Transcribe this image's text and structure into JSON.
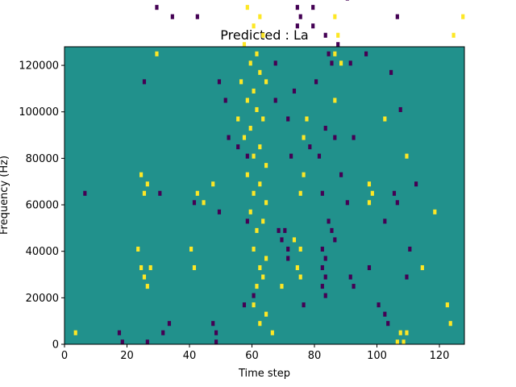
{
  "chart_data": {
    "type": "heatmap",
    "title": "Predicted : La",
    "xlabel": "Time step",
    "ylabel": "Frequency (Hz)",
    "xlim": [
      0,
      128
    ],
    "ylim": [
      0,
      128000
    ],
    "x_ticks": [
      "0",
      "20",
      "40",
      "60",
      "80",
      "100",
      "120"
    ],
    "y_ticks": [
      "0",
      "20000",
      "40000",
      "60000",
      "80000",
      "100000",
      "120000"
    ],
    "legend": "none",
    "grid": false,
    "colors": {
      "background": "#21918c",
      "low": "#440154",
      "high": "#fde725"
    },
    "grid_size": {
      "time_steps": 128,
      "frequency_bins": 64,
      "bin_hz": 2000
    },
    "low_cells": [
      [
        2,
        126
      ],
      [
        31,
        124
      ],
      [
        50,
        124
      ],
      [
        62,
        126
      ],
      [
        88,
        124
      ],
      [
        87,
        110
      ],
      [
        94,
        112
      ],
      [
        110,
        124
      ],
      [
        59,
        118
      ],
      [
        26,
        106
      ],
      [
        35,
        108
      ],
      [
        78,
        108
      ],
      [
        76,
        104
      ],
      [
        115,
        108
      ],
      [
        56,
        94
      ],
      [
        38,
        90
      ],
      [
        46,
        88
      ],
      [
        66,
        92
      ],
      [
        68,
        90
      ],
      [
        66,
        88
      ],
      [
        79,
        86
      ],
      [
        83,
        84
      ],
      [
        100,
        84
      ],
      [
        106,
        88
      ],
      [
        34,
        70
      ],
      [
        42,
        70
      ],
      [
        73,
        76
      ],
      [
        74,
        72
      ],
      [
        79,
        72
      ],
      [
        90,
        74
      ],
      [
        106,
        70
      ],
      [
        29,
        72
      ],
      [
        75,
        70
      ],
      [
        74,
        68
      ],
      [
        79,
        68
      ],
      [
        83,
        66
      ],
      [
        87,
        64
      ],
      [
        96,
        62
      ],
      [
        25,
        56
      ],
      [
        49,
        56
      ],
      [
        51,
        52
      ],
      [
        67,
        52
      ],
      [
        80,
        56
      ],
      [
        84,
        62
      ],
      [
        85,
        60
      ],
      [
        91,
        60
      ],
      [
        104,
        58
      ],
      [
        107,
        50
      ],
      [
        83,
        46
      ],
      [
        86,
        44
      ],
      [
        52,
        44
      ],
      [
        55,
        42
      ],
      [
        58,
        40
      ],
      [
        78,
        42
      ],
      [
        81,
        40
      ],
      [
        88,
        36
      ],
      [
        90,
        30
      ],
      [
        105,
        32
      ],
      [
        106,
        30
      ],
      [
        112,
        34
      ],
      [
        6,
        32
      ],
      [
        30,
        32
      ],
      [
        41,
        30
      ],
      [
        49,
        28
      ],
      [
        58,
        26
      ],
      [
        68,
        24
      ],
      [
        69,
        22
      ],
      [
        70,
        24
      ],
      [
        71,
        20
      ],
      [
        71,
        18
      ],
      [
        84,
        26
      ],
      [
        85,
        24
      ],
      [
        86,
        22
      ],
      [
        82,
        20
      ],
      [
        83,
        18
      ],
      [
        82,
        16
      ],
      [
        83,
        14
      ],
      [
        82,
        12
      ],
      [
        83,
        10
      ],
      [
        76,
        8
      ],
      [
        100,
        8
      ],
      [
        102,
        6
      ],
      [
        103,
        4
      ],
      [
        17,
        2
      ],
      [
        18,
        0
      ],
      [
        26,
        0
      ],
      [
        31,
        2
      ],
      [
        33,
        4
      ],
      [
        47,
        4
      ],
      [
        48,
        2
      ],
      [
        48,
        0
      ],
      [
        57,
        8
      ],
      [
        60,
        10
      ],
      [
        91,
        14
      ],
      [
        92,
        12
      ],
      [
        97,
        16
      ],
      [
        102,
        26
      ],
      [
        109,
        14
      ],
      [
        72,
        40
      ],
      [
        67,
        60
      ],
      [
        71,
        48
      ],
      [
        73,
        54
      ],
      [
        82,
        32
      ],
      [
        92,
        44
      ],
      [
        110,
        20
      ]
    ],
    "high_cells": [
      [
        7,
        126
      ],
      [
        45,
        126
      ],
      [
        61,
        126
      ],
      [
        71,
        124
      ],
      [
        74,
        124
      ],
      [
        86,
        124
      ],
      [
        105,
        124
      ],
      [
        127,
        126
      ],
      [
        53,
        108
      ],
      [
        68,
        112
      ],
      [
        71,
        108
      ],
      [
        83,
        106
      ],
      [
        89,
        104
      ],
      [
        93,
        108
      ],
      [
        112,
        110
      ],
      [
        1,
        98
      ],
      [
        14,
        98
      ],
      [
        61,
        96
      ],
      [
        67,
        94
      ],
      [
        75,
        92
      ],
      [
        40,
        88
      ],
      [
        54,
        90
      ],
      [
        60,
        92
      ],
      [
        62,
        90
      ],
      [
        64,
        90
      ],
      [
        61,
        88
      ],
      [
        63,
        86
      ],
      [
        65,
        88
      ],
      [
        60,
        84
      ],
      [
        62,
        82
      ],
      [
        64,
        84
      ],
      [
        59,
        80
      ],
      [
        61,
        76
      ],
      [
        63,
        78
      ],
      [
        58,
        72
      ],
      [
        60,
        68
      ],
      [
        62,
        70
      ],
      [
        57,
        64
      ],
      [
        59,
        60
      ],
      [
        61,
        62
      ],
      [
        63,
        66
      ],
      [
        56,
        56
      ],
      [
        58,
        52
      ],
      [
        60,
        54
      ],
      [
        62,
        58
      ],
      [
        64,
        56
      ],
      [
        55,
        48
      ],
      [
        57,
        44
      ],
      [
        59,
        46
      ],
      [
        61,
        50
      ],
      [
        63,
        48
      ],
      [
        60,
        40
      ],
      [
        62,
        42
      ],
      [
        64,
        38
      ],
      [
        58,
        36
      ],
      [
        60,
        32
      ],
      [
        62,
        34
      ],
      [
        64,
        30
      ],
      [
        59,
        28
      ],
      [
        61,
        24
      ],
      [
        63,
        26
      ],
      [
        60,
        20
      ],
      [
        62,
        16
      ],
      [
        64,
        18
      ],
      [
        61,
        12
      ],
      [
        63,
        14
      ],
      [
        60,
        8
      ],
      [
        62,
        4
      ],
      [
        64,
        6
      ],
      [
        66,
        2
      ],
      [
        69,
        12
      ],
      [
        73,
        22
      ],
      [
        75,
        20
      ],
      [
        74,
        16
      ],
      [
        75,
        14
      ],
      [
        76,
        44
      ],
      [
        77,
        48
      ],
      [
        76,
        36
      ],
      [
        75,
        32
      ],
      [
        86,
        70
      ],
      [
        87,
        66
      ],
      [
        86,
        62
      ],
      [
        88,
        60
      ],
      [
        86,
        52
      ],
      [
        97,
        30
      ],
      [
        98,
        32
      ],
      [
        97,
        34
      ],
      [
        106,
        0
      ],
      [
        107,
        2
      ],
      [
        108,
        0
      ],
      [
        109,
        2
      ],
      [
        123,
        4
      ],
      [
        24,
        36
      ],
      [
        25,
        32
      ],
      [
        26,
        34
      ],
      [
        23,
        20
      ],
      [
        24,
        16
      ],
      [
        25,
        14
      ],
      [
        26,
        12
      ],
      [
        27,
        16
      ],
      [
        40,
        20
      ],
      [
        41,
        16
      ],
      [
        42,
        32
      ],
      [
        29,
        62
      ],
      [
        33,
        82
      ],
      [
        34,
        88
      ],
      [
        44,
        30
      ],
      [
        47,
        34
      ],
      [
        102,
        48
      ],
      [
        109,
        40
      ],
      [
        118,
        28
      ],
      [
        114,
        16
      ],
      [
        122,
        8
      ],
      [
        3,
        2
      ],
      [
        120,
        80
      ],
      [
        127,
        70
      ],
      [
        124,
        66
      ]
    ]
  }
}
